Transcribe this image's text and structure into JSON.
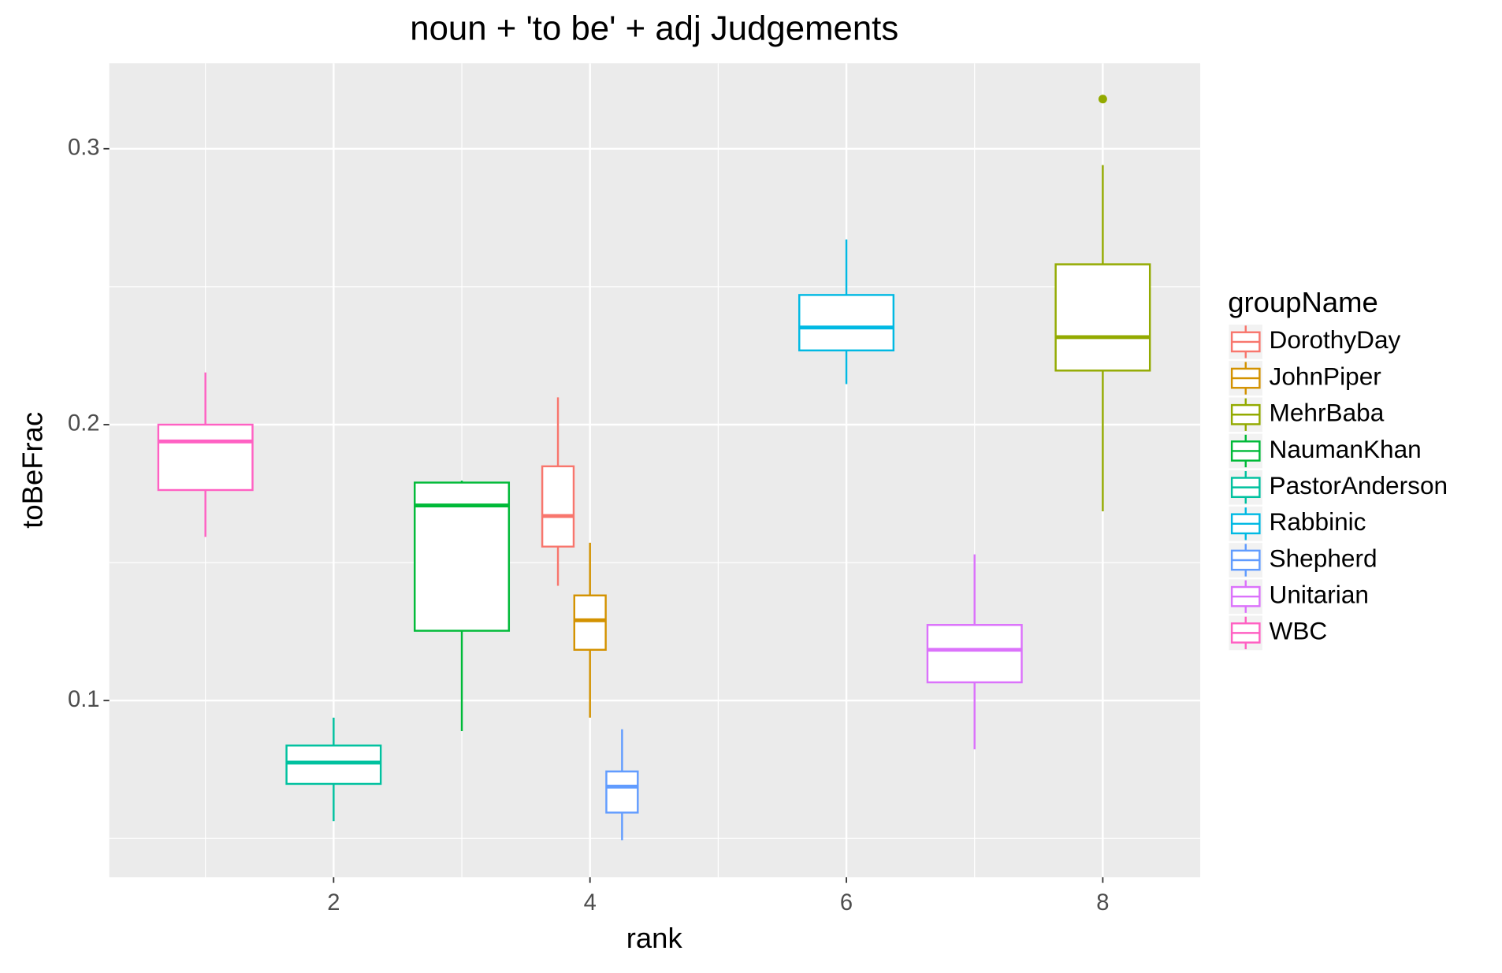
{
  "chart_data": {
    "type": "boxplot",
    "title": "noun + 'to be' + adj Judgements",
    "x_label": "rank",
    "y_label": "toBeFrac",
    "legend_title": "groupName",
    "xlim": [
      0.25,
      8.76
    ],
    "xticks": [
      2,
      4,
      6,
      8
    ],
    "ylim": [
      0.036,
      0.331
    ],
    "yticks": [
      0.1,
      0.2,
      0.3
    ],
    "grid": true,
    "legend_position": "right",
    "series": [
      {
        "name": "DorothyDay",
        "color": "#F8766D",
        "x": 4,
        "whislo": 0.1416,
        "q1": 0.1558,
        "median": 0.1669,
        "q3": 0.1849,
        "whishi": 0.2099,
        "outliers": []
      },
      {
        "name": "JohnPiper",
        "color": "#D39200",
        "x": 4,
        "whislo": 0.0938,
        "q1": 0.1184,
        "median": 0.1291,
        "q3": 0.1381,
        "whishi": 0.1572,
        "outliers": []
      },
      {
        "name": "MehrBaba",
        "color": "#93AA00",
        "x": 8,
        "whislo": 0.1686,
        "q1": 0.2196,
        "median": 0.2317,
        "q3": 0.2581,
        "whishi": 0.2941,
        "outliers": [
          0.318
        ]
      },
      {
        "name": "NaumanKhan",
        "color": "#00BA38",
        "x": 3,
        "whislo": 0.0889,
        "q1": 0.1253,
        "median": 0.1707,
        "q3": 0.179,
        "whishi": 0.1797,
        "outliers": []
      },
      {
        "name": "PastorAnderson",
        "color": "#00C19F",
        "x": 2,
        "whislo": 0.0563,
        "q1": 0.0698,
        "median": 0.0775,
        "q3": 0.0837,
        "whishi": 0.0938,
        "outliers": []
      },
      {
        "name": "Rabbinic",
        "color": "#00B9E3",
        "x": 6,
        "whislo": 0.2147,
        "q1": 0.2269,
        "median": 0.2352,
        "q3": 0.247,
        "whishi": 0.2671,
        "outliers": []
      },
      {
        "name": "Shepherd",
        "color": "#619CFF",
        "x": 4,
        "whislo": 0.0494,
        "q1": 0.0594,
        "median": 0.0688,
        "q3": 0.0743,
        "whishi": 0.0896,
        "outliers": []
      },
      {
        "name": "Unitarian",
        "color": "#DB72FB",
        "x": 7,
        "whislo": 0.0823,
        "q1": 0.1066,
        "median": 0.1184,
        "q3": 0.1274,
        "whishi": 0.153,
        "outliers": []
      },
      {
        "name": "WBC",
        "color": "#FF61C3",
        "x": 1,
        "whislo": 0.1593,
        "q1": 0.1763,
        "median": 0.1939,
        "q3": 0.2,
        "whishi": 0.2189,
        "outliers": []
      }
    ]
  }
}
